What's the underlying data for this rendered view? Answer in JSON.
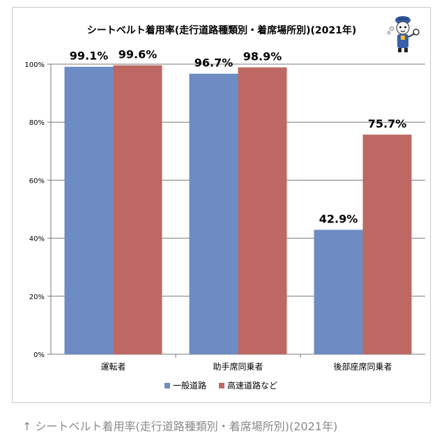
{
  "chart_data": {
    "type": "bar",
    "title": "シートベルト着用率(走行道路種類別・着席場所別)(2021年)",
    "categories": [
      "運転者",
      "助手席同乗者",
      "後部座席同乗者"
    ],
    "series": [
      {
        "name": "一般道路",
        "values": [
          99.1,
          96.7,
          42.9
        ],
        "labels": [
          "99.1%",
          "96.7%",
          "42.9%"
        ],
        "color": "#6d8cc4"
      },
      {
        "name": "高速道路など",
        "values": [
          99.6,
          98.9,
          75.7
        ],
        "labels": [
          "99.6%",
          "98.9%",
          "75.7%"
        ],
        "color": "#bd6863"
      }
    ],
    "ylim": [
      0,
      100
    ],
    "yticks": [
      0,
      20,
      40,
      60,
      80,
      100
    ],
    "ytick_labels": [
      "0%",
      "20%",
      "40%",
      "60%",
      "80%",
      "100%"
    ],
    "grid": true,
    "legend": "bottom-center"
  },
  "caption": "↑ シートベルト着用率(走行道路種類別・着席場所別)(2021年)",
  "mascot_icon": "detective-mascot-icon"
}
